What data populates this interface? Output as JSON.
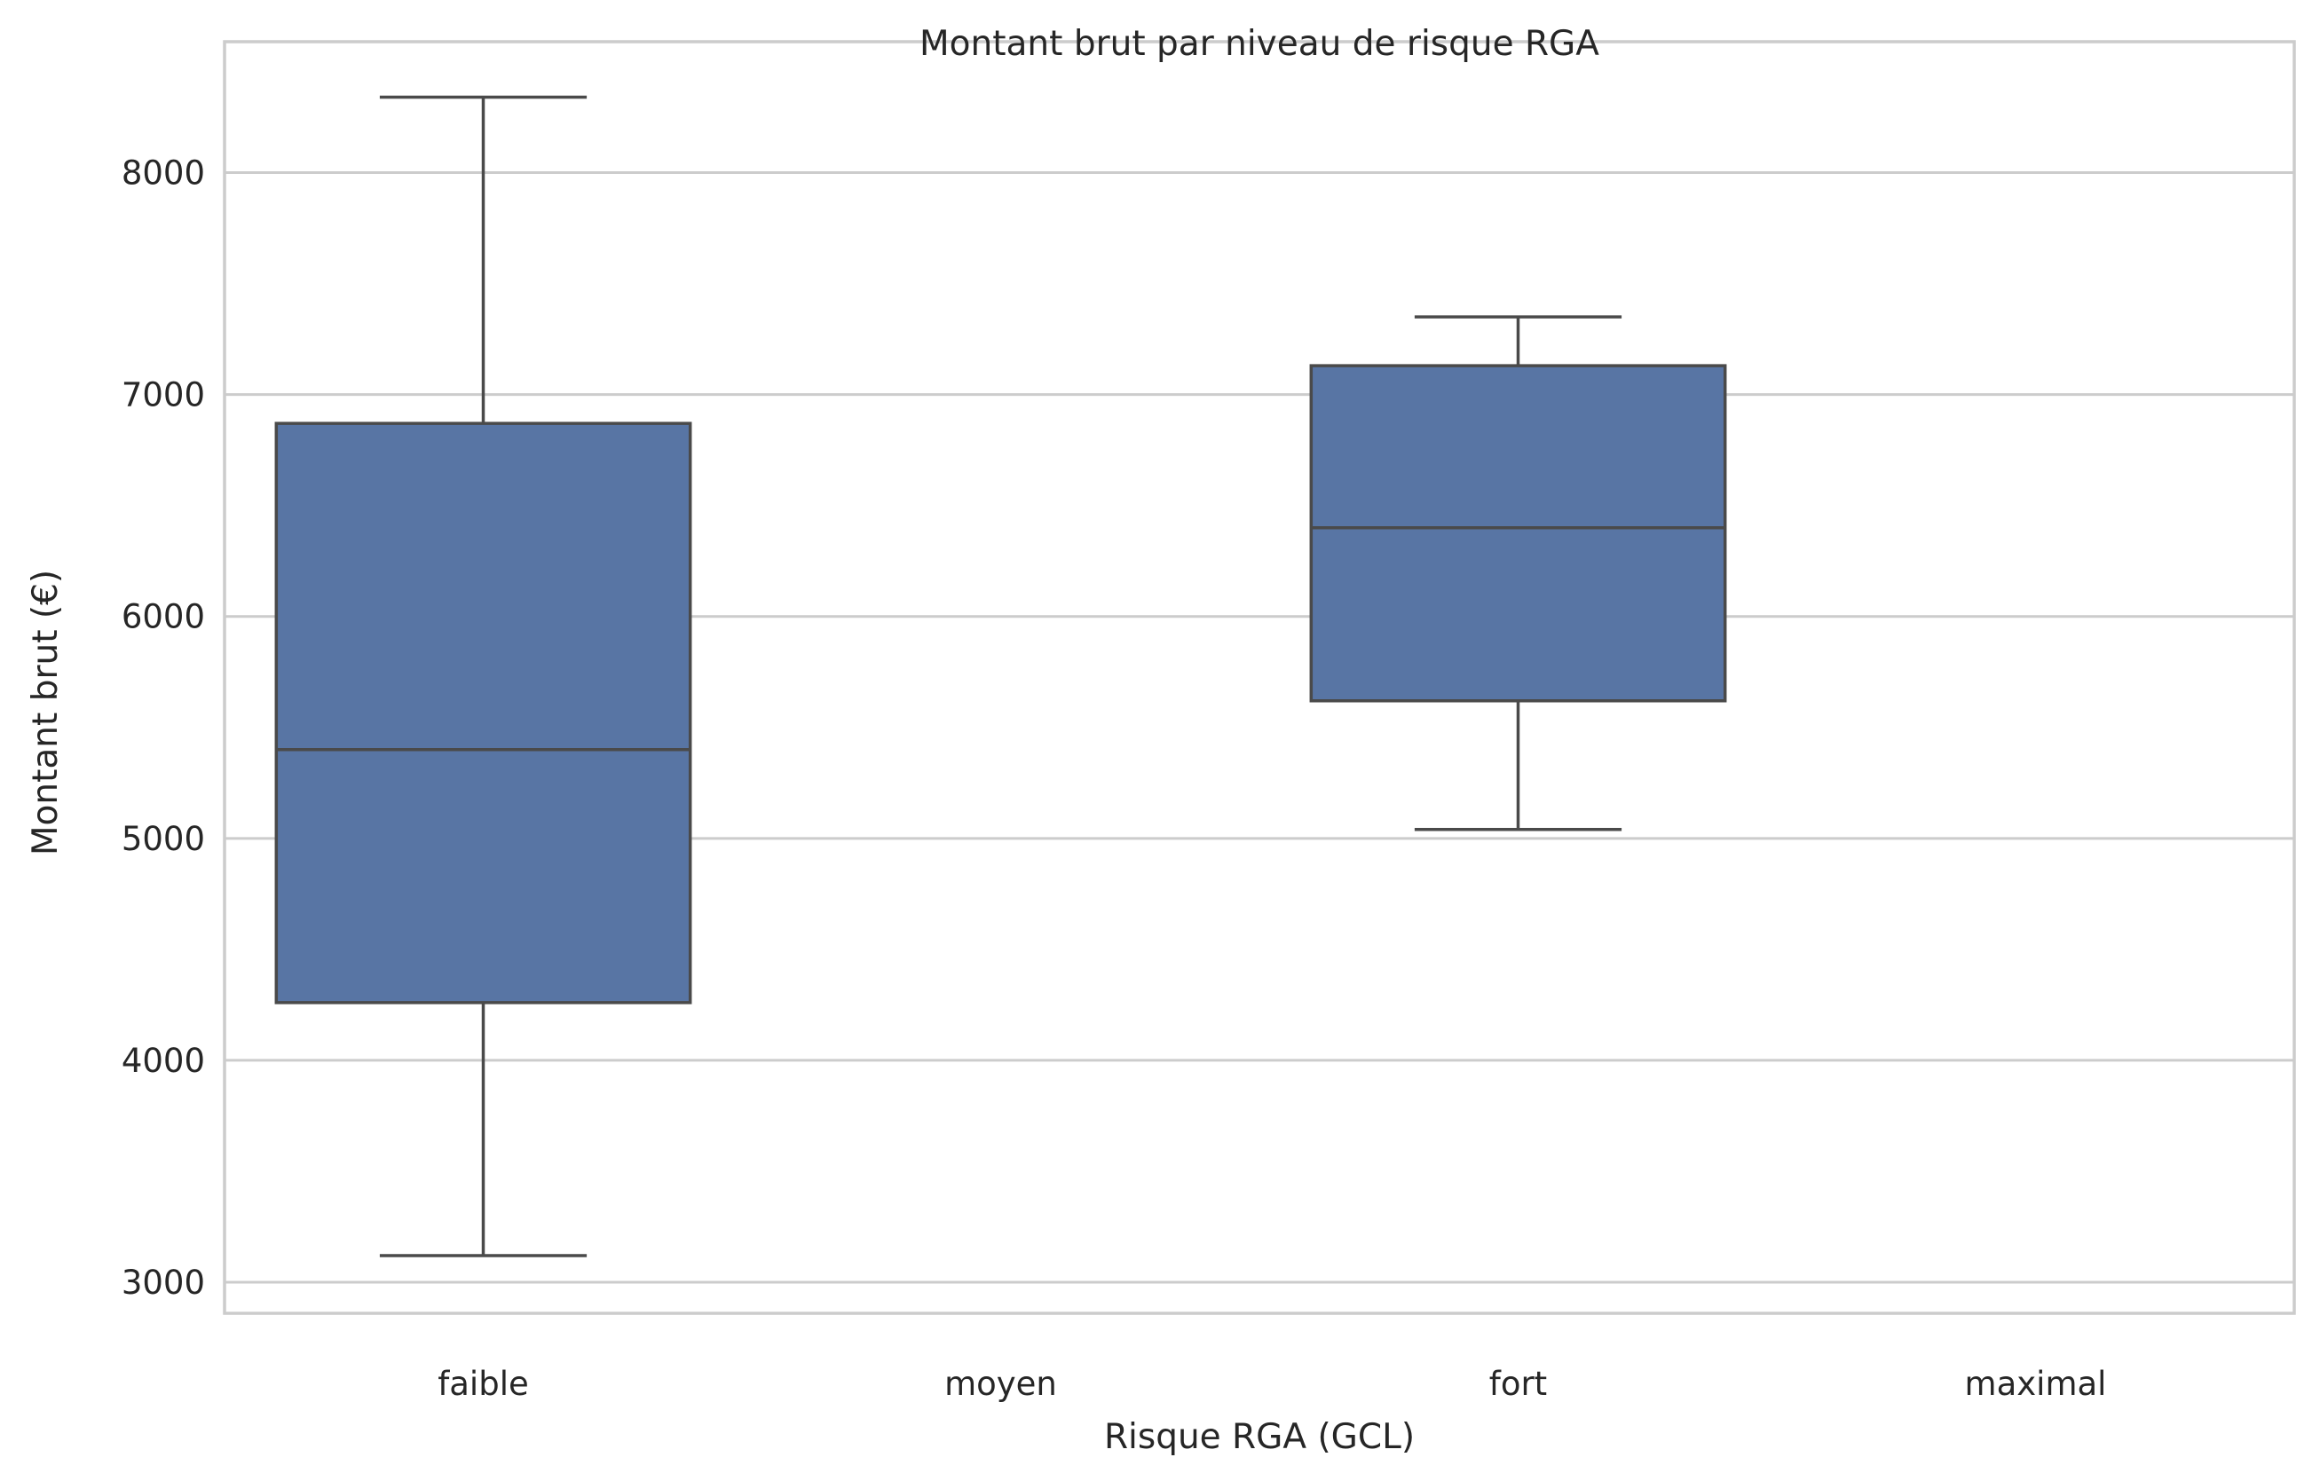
{
  "chart_data": {
    "type": "box",
    "title": "Montant brut par niveau de risque RGA",
    "xlabel": "Risque RGA (GCL)",
    "ylabel": "Montant brut (€)",
    "categories": [
      "faible",
      "moyen",
      "fort",
      "maximal"
    ],
    "boxes": [
      {
        "category": "faible",
        "whisker_low": 3120,
        "q1": 4260,
        "median": 5400,
        "q3": 6870,
        "whisker_high": 8340
      },
      {
        "category": "moyen",
        "whisker_low": null,
        "q1": null,
        "median": null,
        "q3": null,
        "whisker_high": null
      },
      {
        "category": "fort",
        "whisker_low": 5040,
        "q1": 5620,
        "median": 6400,
        "q3": 7130,
        "whisker_high": 7350
      },
      {
        "category": "maximal",
        "whisker_low": null,
        "q1": null,
        "median": null,
        "q3": null,
        "whisker_high": null
      }
    ],
    "yticks": [
      3000,
      4000,
      5000,
      6000,
      7000,
      8000
    ],
    "ylim": [
      2860,
      8590
    ],
    "grid": "horizontal",
    "colors": {
      "box_fill": "#5875a4",
      "box_edge": "#4a4a4a",
      "grid": "#cccccc",
      "spine": "#cccccc",
      "text": "#262626"
    }
  }
}
